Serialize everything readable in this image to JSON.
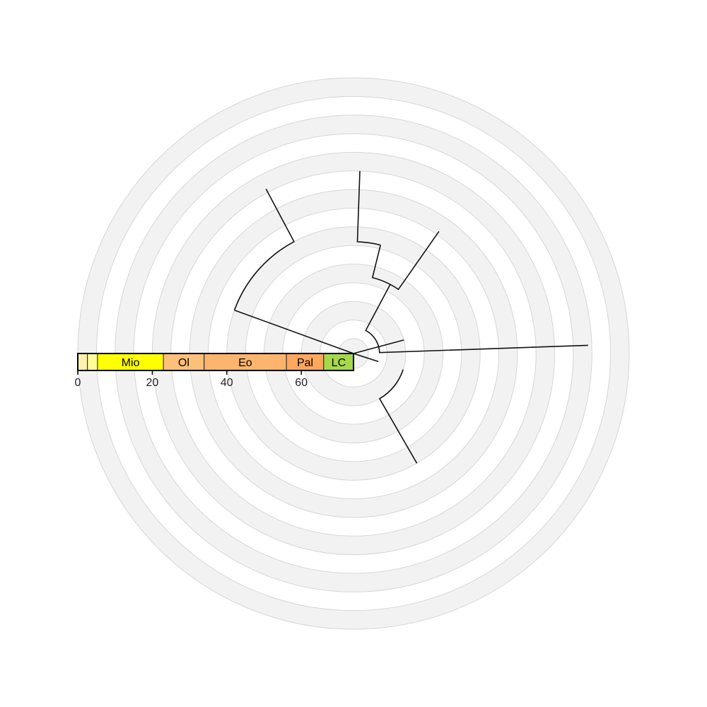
{
  "timescale": {
    "periods": [
      {
        "label": "",
        "start": 0,
        "end": 2.6,
        "color": "#fff2ae"
      },
      {
        "label": "",
        "start": 2.6,
        "end": 5.3,
        "color": "#ffff99"
      },
      {
        "label": "Mio",
        "start": 5.3,
        "end": 23,
        "color": "#ffff00"
      },
      {
        "label": "Ol",
        "start": 23,
        "end": 33.9,
        "color": "#fdc07a"
      },
      {
        "label": "Eo",
        "start": 33.9,
        "end": 56,
        "color": "#fdb46c"
      },
      {
        "label": "Pal",
        "start": 56,
        "end": 66,
        "color": "#fda75f"
      },
      {
        "label": "LC",
        "start": 66,
        "end": 74,
        "color": "#a6d84a"
      }
    ],
    "ticks": [
      "0",
      "20",
      "40",
      "60"
    ]
  },
  "tree": {
    "root_age": 74,
    "ring_band_width_ma": 5,
    "branches": [
      {
        "a1": 180,
        "a2": 342,
        "r1": 0,
        "r2": 7
      },
      {
        "a1": 342,
        "a2": 15,
        "r1": 0,
        "r2": 14
      },
      {
        "a1": 15,
        "a2": 62,
        "r1": 7,
        "r2": 21
      },
      {
        "a1": 62,
        "a2": 76,
        "r1": 21,
        "r2": 30
      },
      {
        "a1": 76,
        "a2": 88,
        "r1": 30,
        "r2": 49
      },
      {
        "a1": 62,
        "a2": 55,
        "r1": 21,
        "r2": 40
      },
      {
        "a1": 15,
        "a2": 2,
        "r1": 7,
        "r2": 63
      },
      {
        "a1": 342,
        "a2": 300,
        "r1": 14,
        "r2": 34
      },
      {
        "a1": 180,
        "a2": 160,
        "r1": 0,
        "r2": 34
      },
      {
        "a1": 160,
        "a2": 118,
        "r1": 34,
        "r2": 50
      }
    ]
  }
}
